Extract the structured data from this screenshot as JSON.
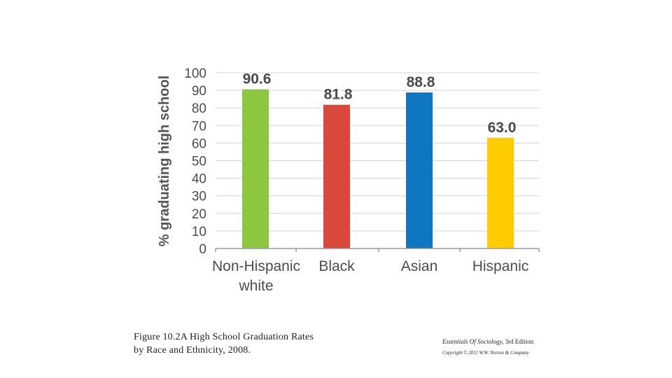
{
  "chart_data": {
    "type": "bar",
    "title": "",
    "xlabel": "",
    "ylabel": "% graduating high school",
    "ylim": [
      0,
      100
    ],
    "yticks": [
      0,
      10,
      20,
      30,
      40,
      50,
      60,
      70,
      80,
      90,
      100
    ],
    "categories": [
      [
        "Non-Hispanic",
        "white"
      ],
      [
        "Black"
      ],
      [
        "Asian"
      ],
      [
        "Hispanic"
      ]
    ],
    "values": [
      90.6,
      81.8,
      88.8,
      63.0
    ],
    "data_labels": [
      "90.6",
      "81.8",
      "88.8",
      "63.0"
    ],
    "colors": [
      "#8dc63f",
      "#d9483b",
      "#0d78c1",
      "#ffcc00"
    ],
    "gridlines": true
  },
  "caption": {
    "line1": "Figure 10.2A High School Graduation Rates",
    "line2": "by Race and Ethnicity, 2008."
  },
  "credit": {
    "book_title": "Essentials Of Sociology,",
    "edition": " 3rd Edition",
    "copyright": "Copyright © 2011 W.W. Norton & Company"
  }
}
